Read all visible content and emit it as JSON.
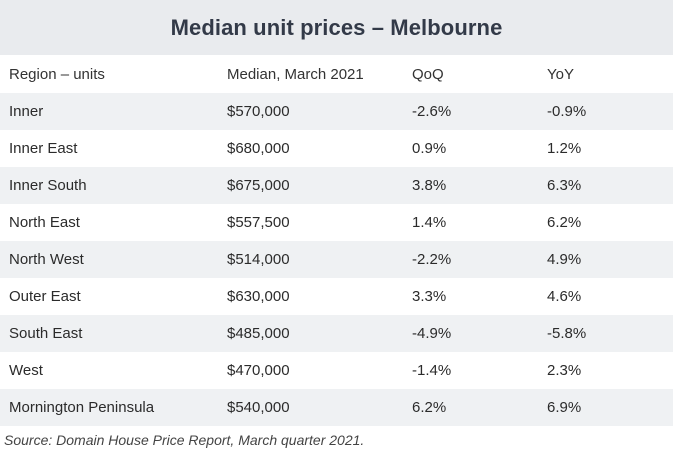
{
  "title": "Median unit prices – Melbourne",
  "table": {
    "headers": {
      "region": "Region – units",
      "median": "Median, March 2021",
      "qoq": "QoQ",
      "yoy": "YoY"
    },
    "rows": [
      {
        "region": "Inner",
        "median": "$570,000",
        "qoq": "-2.6%",
        "yoy": "-0.9%"
      },
      {
        "region": "Inner East",
        "median": "$680,000",
        "qoq": "0.9%",
        "yoy": "1.2%"
      },
      {
        "region": "Inner South",
        "median": "$675,000",
        "qoq": "3.8%",
        "yoy": "6.3%"
      },
      {
        "region": "North East",
        "median": "$557,500",
        "qoq": "1.4%",
        "yoy": "6.2%"
      },
      {
        "region": "North West",
        "median": "$514,000",
        "qoq": "-2.2%",
        "yoy": "4.9%"
      },
      {
        "region": "Outer East",
        "median": "$630,000",
        "qoq": "3.3%",
        "yoy": "4.6%"
      },
      {
        "region": "South East",
        "median": "$485,000",
        "qoq": "-4.9%",
        "yoy": "-5.8%"
      },
      {
        "region": "West",
        "median": "$470,000",
        "qoq": "-1.4%",
        "yoy": "2.3%"
      },
      {
        "region": "Mornington Peninsula",
        "median": "$540,000",
        "qoq": "6.2%",
        "yoy": "6.9%"
      }
    ]
  },
  "source": "Source: Domain House Price Report, March quarter 2021.",
  "colors": {
    "title_band": "#e9ebee",
    "stripe": "#eff1f3",
    "title_text": "#333a48"
  }
}
